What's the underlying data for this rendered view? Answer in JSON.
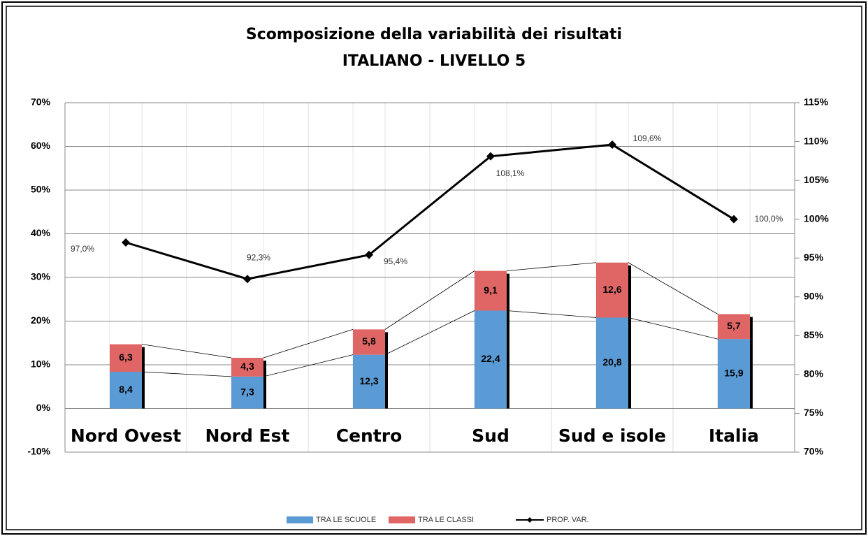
{
  "chart_data": {
    "type": "bar",
    "title": "Scomposizione della variabilità dei risultati",
    "subtitle": "ITALIANO - LIVELLO 5",
    "categories": [
      "Nord Ovest",
      "Nord Est",
      "Centro",
      "Sud",
      "Sud e isole",
      "Italia"
    ],
    "series": [
      {
        "name": "TRA LE SCUOLE",
        "color": "#5b9bd5",
        "values": [
          8.4,
          7.3,
          12.3,
          22.4,
          20.8,
          15.9
        ],
        "value_labels": [
          "8,4",
          "7,3",
          "12,3",
          "22,4",
          "20,8",
          "15,9"
        ]
      },
      {
        "name": "TRA LE CLASSI",
        "color": "#e06666",
        "values": [
          6.3,
          4.3,
          5.8,
          9.1,
          12.6,
          5.7
        ],
        "value_labels": [
          "6,3",
          "4,3",
          "5,8",
          "9,1",
          "12,6",
          "5,7"
        ]
      },
      {
        "name": "PROP. VAR.",
        "type": "line",
        "axis": "y2",
        "color": "#000000",
        "values": [
          97.0,
          92.3,
          95.4,
          108.1,
          109.6,
          100.0
        ],
        "value_labels": [
          "97,0%",
          "92,3%",
          "95,4%",
          "108,1%",
          "109,6%",
          "100,0%"
        ]
      }
    ],
    "ylim": [
      -10,
      70
    ],
    "yticks": [
      {
        "value": -10,
        "label": "-10%"
      },
      {
        "value": 0,
        "label": "0%"
      },
      {
        "value": 10,
        "label": "10%"
      },
      {
        "value": 20,
        "label": "20%"
      },
      {
        "value": 30,
        "label": "30%"
      },
      {
        "value": 40,
        "label": "40%"
      },
      {
        "value": 50,
        "label": "50%"
      },
      {
        "value": 60,
        "label": "60%"
      },
      {
        "value": 70,
        "label": "70%"
      }
    ],
    "y2lim": [
      70,
      115
    ],
    "y2ticks": [
      {
        "value": 70,
        "label": "70%"
      },
      {
        "value": 75,
        "label": "75%"
      },
      {
        "value": 80,
        "label": "80%"
      },
      {
        "value": 85,
        "label": "85%"
      },
      {
        "value": 90,
        "label": "90%"
      },
      {
        "value": 95,
        "label": "95%"
      },
      {
        "value": 100,
        "label": "100%"
      },
      {
        "value": 105,
        "label": "105%"
      },
      {
        "value": 110,
        "label": "110%"
      },
      {
        "value": 115,
        "label": "115%"
      }
    ],
    "grid": true,
    "legend": "bottom"
  }
}
